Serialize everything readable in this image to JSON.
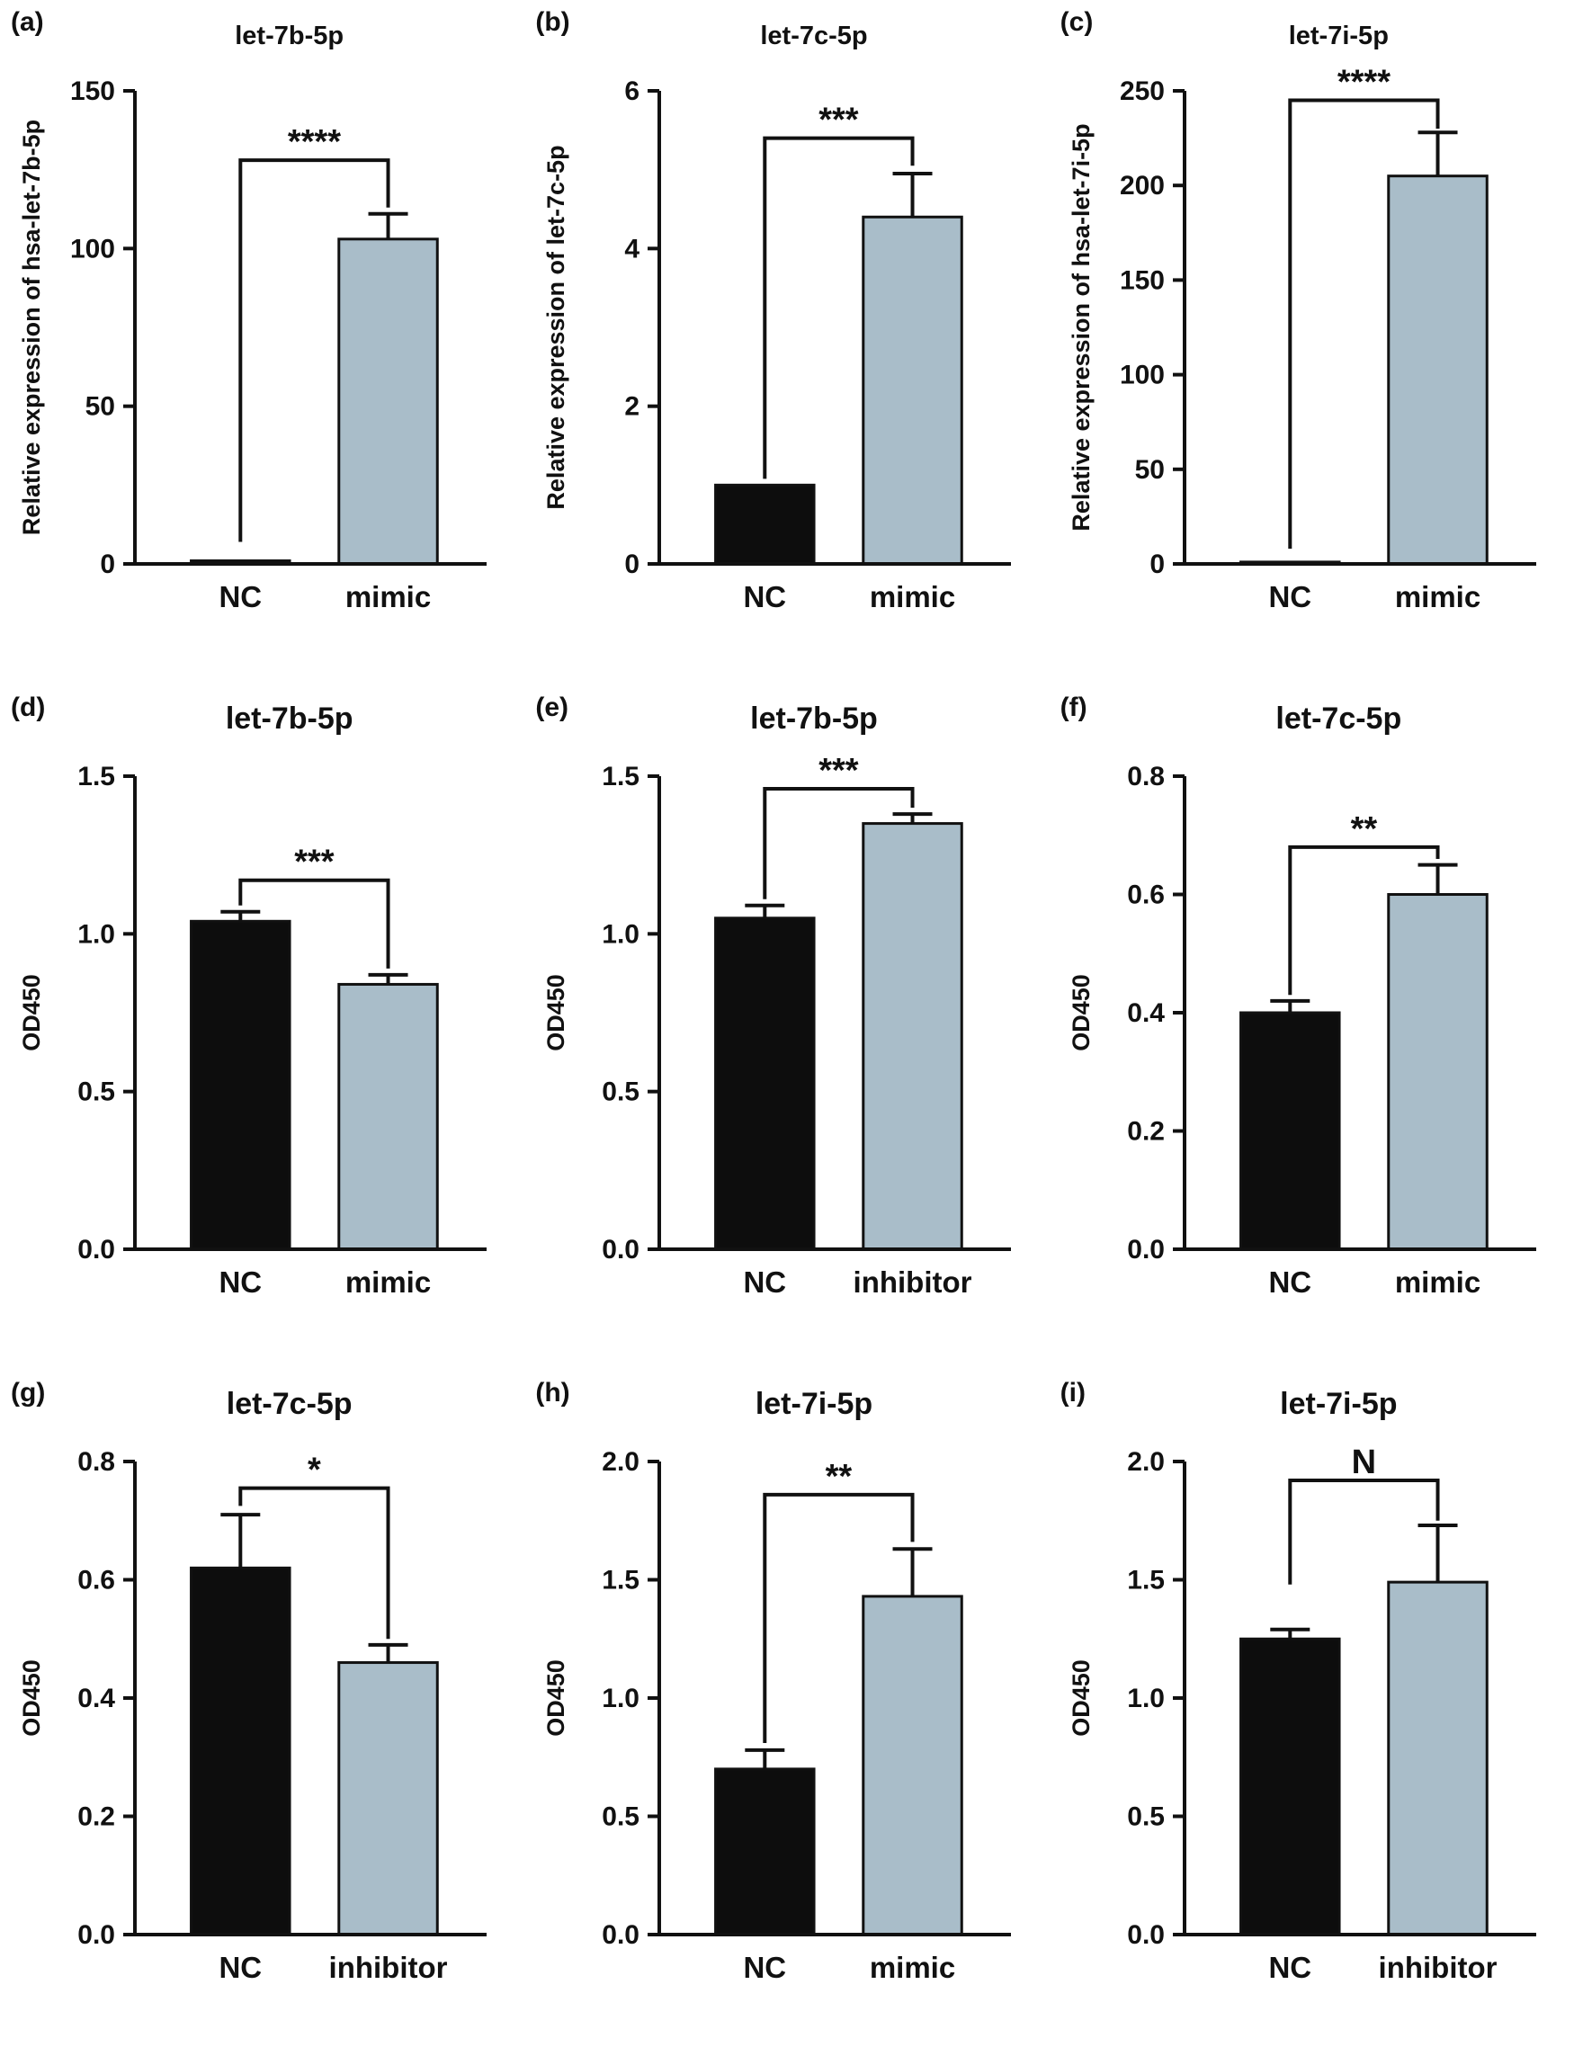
{
  "figure": {
    "colors": {
      "nc_bar": "#0d0d0d",
      "treatment_bar": "#a9bdc9",
      "axis": "#111111"
    }
  },
  "chart_data": [
    {
      "type": "bar",
      "panel_label": "(a)",
      "title": "let-7b-5p",
      "ylabel": "Relative expression of hsa-let-7b-5p",
      "categories": [
        "NC",
        "mimic"
      ],
      "values": [
        1,
        103
      ],
      "errors": [
        0,
        8
      ],
      "ylim": [
        0,
        150
      ],
      "yticks": [
        0,
        50,
        100,
        150
      ],
      "ytick_labels": [
        "0",
        "50",
        "100",
        "150"
      ],
      "significance": "****",
      "bracket": {
        "top": 128,
        "left_drop": 7,
        "right_drop": 113
      }
    },
    {
      "type": "bar",
      "panel_label": "(b)",
      "title": "let-7c-5p",
      "ylabel": "Relative expression of let-7c-5p",
      "categories": [
        "NC",
        "mimic"
      ],
      "values": [
        1,
        4.4
      ],
      "errors": [
        0,
        0.55
      ],
      "ylim": [
        0,
        6
      ],
      "yticks": [
        0,
        2,
        4,
        6
      ],
      "ytick_labels": [
        "0",
        "2",
        "4",
        "6"
      ],
      "significance": "***",
      "bracket": {
        "top": 5.4,
        "left_drop": 1.08,
        "right_drop": 5.05
      }
    },
    {
      "type": "bar",
      "panel_label": "(c)",
      "title": "let-7i-5p",
      "ylabel": "Relative expression of hsa-let-7i-5p",
      "categories": [
        "NC",
        "mimic"
      ],
      "values": [
        1,
        205
      ],
      "errors": [
        0,
        23
      ],
      "ylim": [
        0,
        250
      ],
      "yticks": [
        0,
        50,
        100,
        150,
        200,
        250
      ],
      "ytick_labels": [
        "0",
        "50",
        "100",
        "150",
        "200",
        "250"
      ],
      "significance": "****",
      "bracket": {
        "top": 245,
        "left_drop": 8,
        "right_drop": 230
      }
    },
    {
      "type": "bar",
      "panel_label": "(d)",
      "title": "let-7b-5p",
      "ylabel": "OD450",
      "categories": [
        "NC",
        "mimic"
      ],
      "values": [
        1.04,
        0.84
      ],
      "errors": [
        0.03,
        0.03
      ],
      "ylim": [
        0,
        1.5
      ],
      "yticks": [
        0,
        0.5,
        1,
        1.5
      ],
      "ytick_labels": [
        "0.0",
        "0.5",
        "1.0",
        "1.5"
      ],
      "significance": "***",
      "bracket": {
        "top": 1.17,
        "left_drop": 1.09,
        "right_drop": 0.89
      }
    },
    {
      "type": "bar",
      "panel_label": "(e)",
      "title": "let-7b-5p",
      "ylabel": "OD450",
      "categories": [
        "NC",
        "inhibitor"
      ],
      "values": [
        1.05,
        1.35
      ],
      "errors": [
        0.04,
        0.03
      ],
      "ylim": [
        0,
        1.5
      ],
      "yticks": [
        0,
        0.5,
        1,
        1.5
      ],
      "ytick_labels": [
        "0.0",
        "0.5",
        "1.0",
        "1.5"
      ],
      "significance": "***",
      "bracket": {
        "top": 1.46,
        "left_drop": 1.11,
        "right_drop": 1.4
      }
    },
    {
      "type": "bar",
      "panel_label": "(f)",
      "title": "let-7c-5p",
      "ylabel": "OD450",
      "categories": [
        "NC",
        "mimic"
      ],
      "values": [
        0.4,
        0.6
      ],
      "errors": [
        0.02,
        0.05
      ],
      "ylim": [
        0,
        0.8
      ],
      "yticks": [
        0,
        0.2,
        0.4,
        0.6,
        0.8
      ],
      "ytick_labels": [
        "0.0",
        "0.2",
        "0.4",
        "0.6",
        "0.8"
      ],
      "significance": "**",
      "bracket": {
        "top": 0.68,
        "left_drop": 0.43,
        "right_drop": 0.66
      }
    },
    {
      "type": "bar",
      "panel_label": "(g)",
      "title": "let-7c-5p",
      "ylabel": "OD450",
      "categories": [
        "NC",
        "inhibitor"
      ],
      "values": [
        0.62,
        0.46
      ],
      "errors": [
        0.09,
        0.03
      ],
      "ylim": [
        0,
        0.8
      ],
      "yticks": [
        0,
        0.2,
        0.4,
        0.6,
        0.8
      ],
      "ytick_labels": [
        "0.0",
        "0.2",
        "0.4",
        "0.6",
        "0.8"
      ],
      "significance": "*",
      "bracket": {
        "top": 0.755,
        "left_drop": 0.725,
        "right_drop": 0.5
      }
    },
    {
      "type": "bar",
      "panel_label": "(h)",
      "title": "let-7i-5p",
      "ylabel": "OD450",
      "categories": [
        "NC",
        "mimic"
      ],
      "values": [
        0.7,
        1.43
      ],
      "errors": [
        0.08,
        0.2
      ],
      "ylim": [
        0,
        2
      ],
      "yticks": [
        0,
        0.5,
        1,
        1.5,
        2
      ],
      "ytick_labels": [
        "0.0",
        "0.5",
        "1.0",
        "1.5",
        "2.0"
      ],
      "significance": "**",
      "bracket": {
        "top": 1.86,
        "left_drop": 0.81,
        "right_drop": 1.66
      }
    },
    {
      "type": "bar",
      "panel_label": "(i)",
      "title": "let-7i-5p",
      "ylabel": "OD450",
      "categories": [
        "NC",
        "inhibitor"
      ],
      "values": [
        1.25,
        1.49
      ],
      "errors": [
        0.04,
        0.24
      ],
      "ylim": [
        0,
        2
      ],
      "yticks": [
        0,
        0.5,
        1,
        1.5,
        2
      ],
      "ytick_labels": [
        "0.0",
        "0.5",
        "1.0",
        "1.5",
        "2.0"
      ],
      "significance": "N",
      "bracket": {
        "top": 1.92,
        "left_drop": 1.48,
        "right_drop": 1.75
      }
    }
  ]
}
